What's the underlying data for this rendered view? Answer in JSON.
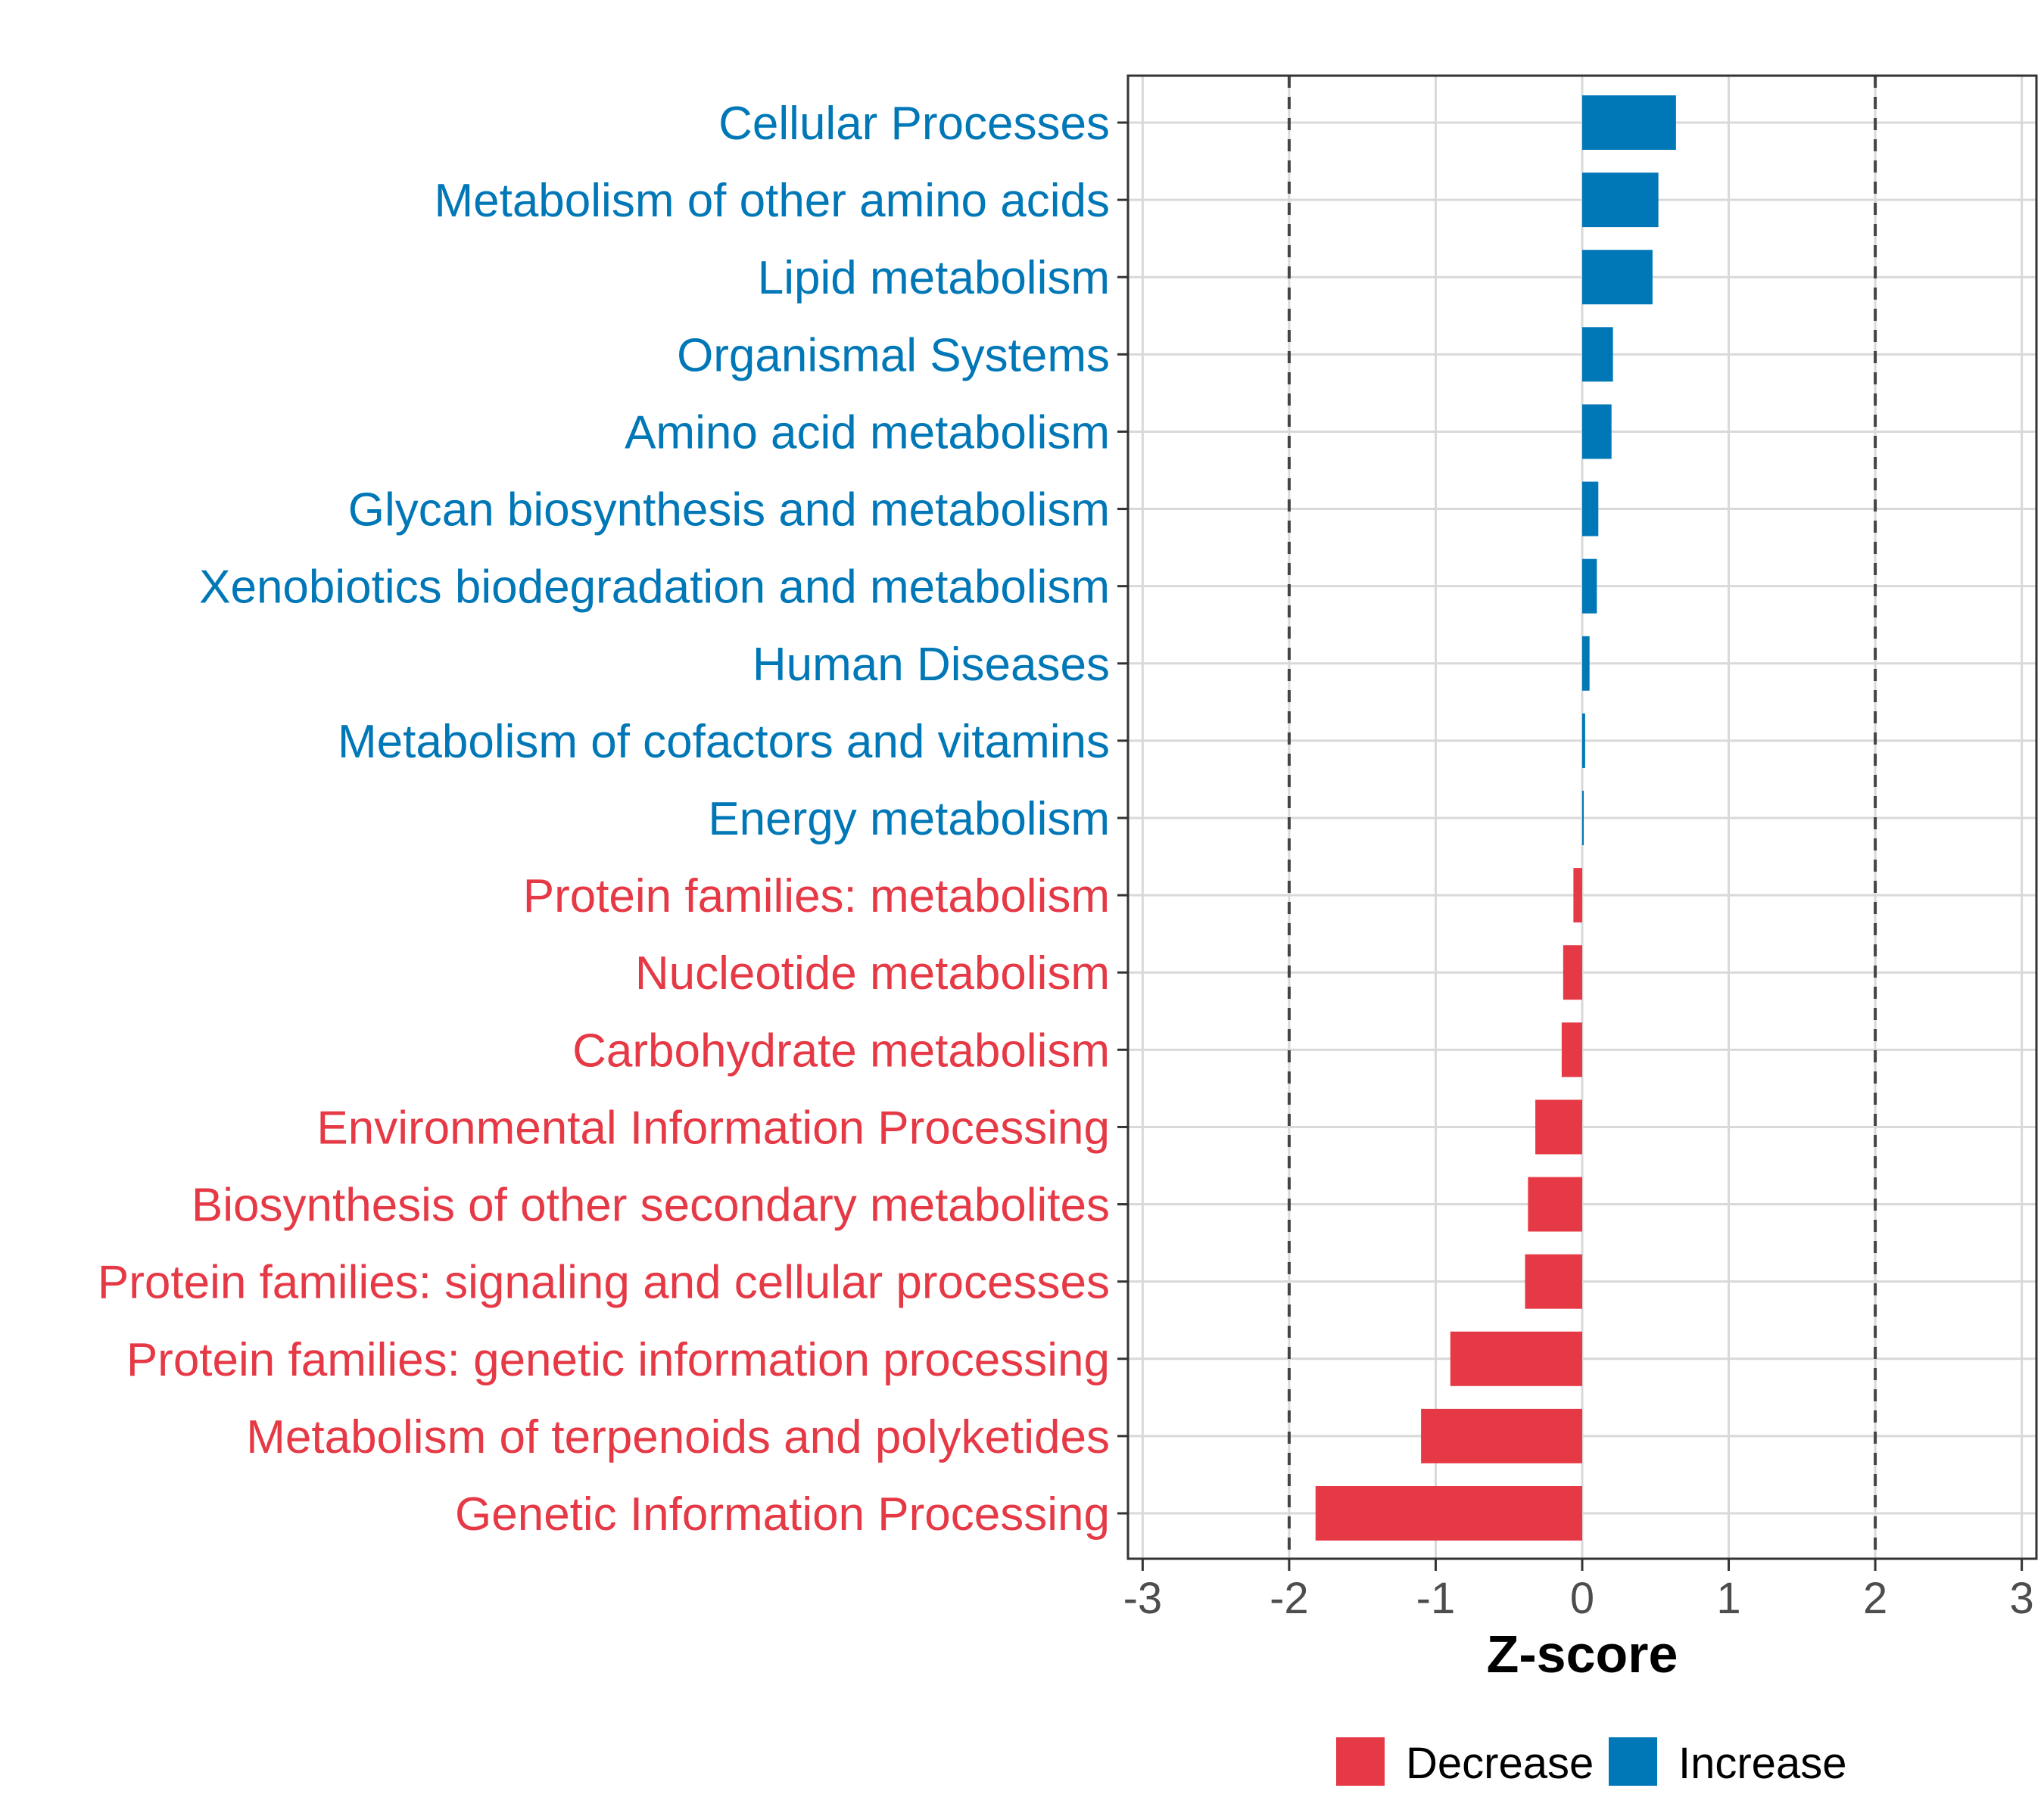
{
  "chart_data": {
    "type": "bar",
    "orientation": "horizontal",
    "xlabel": "Z-score",
    "ylabel": "",
    "xlim": [
      -3.1,
      3.1
    ],
    "x_ticks": [
      -3,
      -2,
      -1,
      0,
      1,
      2,
      3
    ],
    "reference_lines": [
      -2,
      2
    ],
    "grid": true,
    "legend": {
      "position": "bottom",
      "entries": [
        {
          "name": "Decrease",
          "color": "#e63946"
        },
        {
          "name": "Increase",
          "color": "#0077b6"
        }
      ]
    },
    "categories": [
      "Cellular Processes",
      "Metabolism of other amino acids",
      "Lipid metabolism",
      "Organismal Systems",
      "Amino acid metabolism",
      "Glycan biosynthesis and metabolism",
      "Xenobiotics biodegradation and metabolism",
      "Human Diseases",
      "Metabolism of cofactors and vitamins",
      "Energy metabolism",
      "Protein families: metabolism",
      "Nucleotide metabolism",
      "Carbohydrate metabolism",
      "Environmental Information Processing",
      "Biosynthesis of other secondary metabolites",
      "Protein families: signaling and cellular processes",
      "Protein families: genetic information processing",
      "Metabolism of terpenoids and polyketides",
      "Genetic Information Processing"
    ],
    "values": [
      0.64,
      0.52,
      0.48,
      0.21,
      0.2,
      0.11,
      0.1,
      0.05,
      0.02,
      0.01,
      -0.06,
      -0.13,
      -0.14,
      -0.32,
      -0.37,
      -0.39,
      -0.9,
      -1.1,
      -1.82
    ],
    "colors": {
      "Increase": "#0077b6",
      "Decrease": "#e63946"
    }
  }
}
